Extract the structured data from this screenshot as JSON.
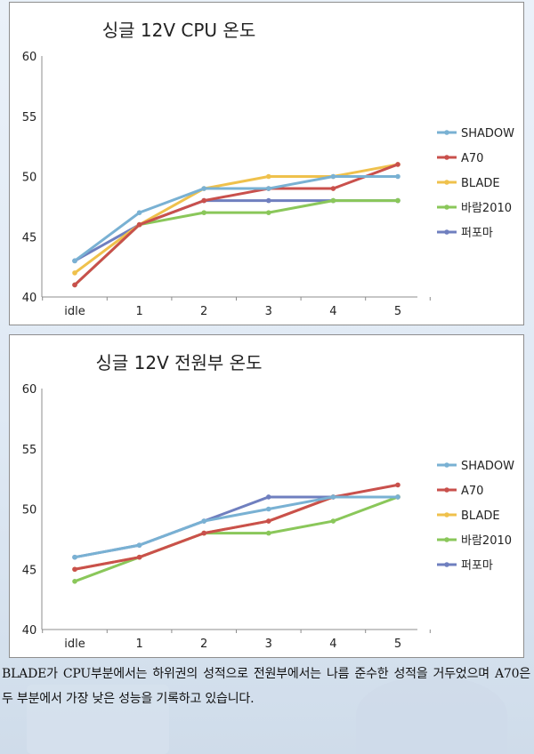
{
  "chart_data": [
    {
      "type": "line",
      "title": "싱글 12V CPU 온도",
      "categories": [
        "idle",
        "1",
        "2",
        "3",
        "4",
        "5"
      ],
      "ylim": [
        40,
        60
      ],
      "yticks": [
        "40",
        "45",
        "50",
        "55",
        "60"
      ],
      "grid": false,
      "legend_position": "right",
      "series": [
        {
          "name": "SHADOW",
          "color": "#79b1d3",
          "values": [
            43,
            47,
            49,
            49,
            50,
            50
          ]
        },
        {
          "name": "A70",
          "color": "#c9504c",
          "values": [
            41,
            46,
            48,
            49,
            49,
            51
          ]
        },
        {
          "name": "BLADE",
          "color": "#efc14c",
          "values": [
            42,
            46,
            49,
            50,
            50,
            51
          ]
        },
        {
          "name": "바람2010",
          "color": "#8ac75a",
          "values": [
            41,
            46,
            47,
            47,
            48,
            48
          ]
        },
        {
          "name": "퍼포마",
          "color": "#6f7fbf",
          "values": [
            43,
            46,
            48,
            48,
            48,
            48
          ]
        }
      ]
    },
    {
      "type": "line",
      "title": "싱글 12V 전원부 온도",
      "categories": [
        "idle",
        "1",
        "2",
        "3",
        "4",
        "5"
      ],
      "ylim": [
        40,
        60
      ],
      "yticks": [
        "40",
        "45",
        "50",
        "55",
        "60"
      ],
      "grid": false,
      "legend_position": "right",
      "series": [
        {
          "name": "SHADOW",
          "color": "#79b1d3",
          "values": [
            46,
            47,
            49,
            50,
            51,
            51
          ]
        },
        {
          "name": "A70",
          "color": "#c9504c",
          "values": [
            45,
            46,
            48,
            49,
            51,
            52
          ]
        },
        {
          "name": "BLADE",
          "color": "#efc14c",
          "values": [
            45,
            46,
            48,
            49,
            51,
            51
          ]
        },
        {
          "name": "바람2010",
          "color": "#8ac75a",
          "values": [
            44,
            46,
            48,
            48,
            49,
            51
          ]
        },
        {
          "name": "퍼포마",
          "color": "#6f7fbf",
          "values": [
            46,
            47,
            49,
            51,
            51,
            51
          ]
        }
      ]
    }
  ],
  "caption": "BLADE가 CPU부분에서는 하위권의 성적으로 전원부에서는 나름 준수한 성적을 거두었으며 A70은 두 부분에서 가장 낮은 성능을 기록하고 있습니다."
}
